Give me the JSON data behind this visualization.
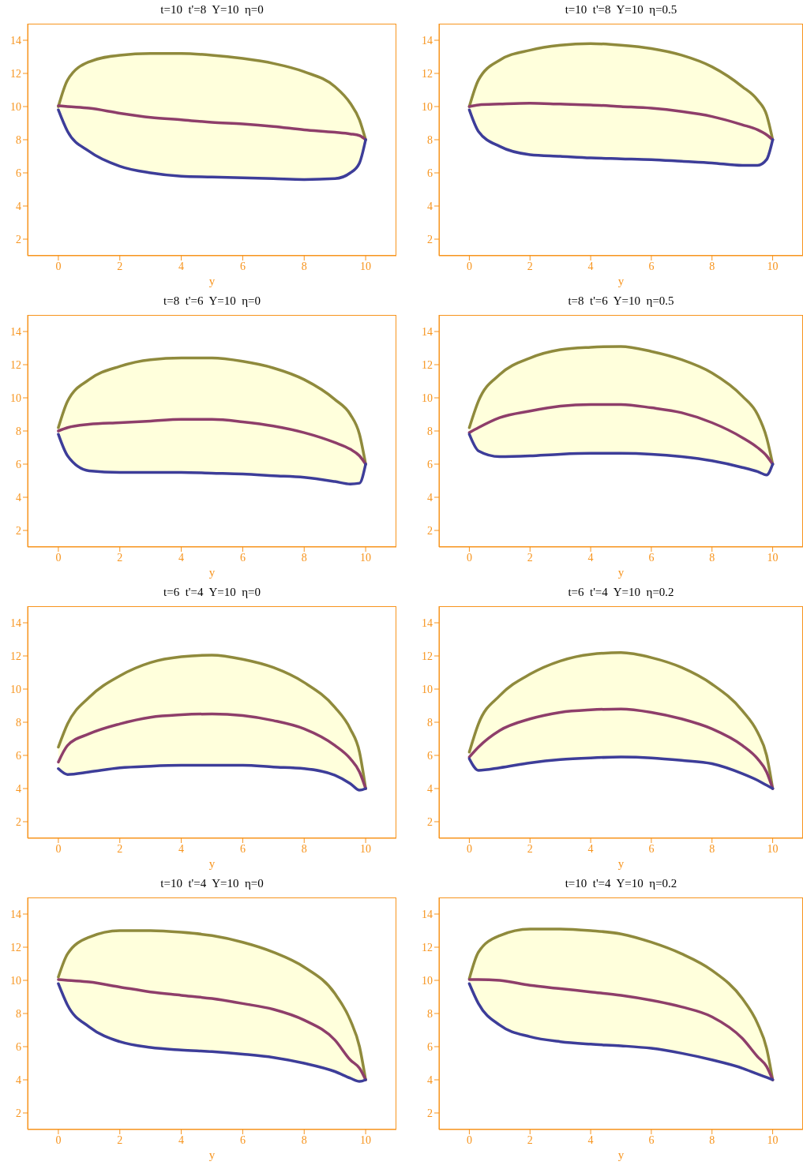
{
  "chart_data": [
    {
      "type": "line",
      "title": "t=10  t'=8  Y=10  η=0",
      "xlabel": "y",
      "x": [
        0,
        0.3,
        1,
        2,
        3,
        4,
        5,
        6,
        7,
        8,
        9,
        9.5,
        9.8,
        10
      ],
      "xlim": [
        -1,
        11
      ],
      "ylim": [
        1,
        15
      ],
      "xticks": [
        0,
        2,
        4,
        6,
        8,
        10
      ],
      "yticks": [
        2,
        4,
        6,
        8,
        10,
        12,
        14
      ],
      "series": [
        {
          "color": "#8f8a3c",
          "values": [
            10,
            11.6,
            12.7,
            13.1,
            13.2,
            13.2,
            13.1,
            12.9,
            12.6,
            12.1,
            11.2,
            10.2,
            9.2,
            8
          ]
        },
        {
          "color": "#8e3e6a",
          "values": [
            10.05,
            10,
            9.9,
            9.6,
            9.35,
            9.2,
            9.05,
            8.95,
            8.8,
            8.6,
            8.45,
            8.35,
            8.25,
            8
          ],
          "lower": [
            9.8,
            8.5,
            7.3,
            6.4,
            6,
            5.8,
            5.75,
            5.7,
            5.65,
            5.6,
            5.65,
            6,
            6.6,
            8
          ],
          "upper": [
            10,
            11.6,
            12.7,
            13.1,
            13.2,
            13.2,
            13.1,
            12.9,
            12.6,
            12.1,
            11.2,
            10.2,
            9.2,
            8
          ]
        },
        {
          "color": "#3d3d99",
          "values": [
            9.8,
            8.5,
            7.3,
            6.4,
            6,
            5.8,
            5.75,
            5.7,
            5.65,
            5.6,
            5.65,
            6,
            6.6,
            8
          ]
        }
      ]
    },
    {
      "type": "line",
      "title": "t=10  t'=8  Y=10  η=0.5",
      "xlabel": "y",
      "x": [
        0,
        0.3,
        1,
        2,
        3,
        4,
        5,
        6,
        7,
        8,
        9,
        9.5,
        9.8,
        10
      ],
      "xlim": [
        -1,
        11
      ],
      "ylim": [
        1,
        15
      ],
      "xticks": [
        0,
        2,
        4,
        6,
        8,
        10
      ],
      "yticks": [
        2,
        4,
        6,
        8,
        10,
        12,
        14
      ],
      "series": [
        {
          "color": "#8f8a3c",
          "values": [
            10,
            11.6,
            12.8,
            13.4,
            13.7,
            13.8,
            13.7,
            13.5,
            13.1,
            12.4,
            11.2,
            10.4,
            9.5,
            8
          ]
        },
        {
          "color": "#8e3e6a",
          "values": [
            10,
            10.1,
            10.15,
            10.2,
            10.15,
            10.1,
            10,
            9.9,
            9.7,
            9.4,
            8.9,
            8.6,
            8.3,
            8
          ],
          "lower": [
            9.8,
            8.5,
            7.6,
            7.1,
            7,
            6.9,
            6.85,
            6.8,
            6.7,
            6.6,
            6.45,
            6.45,
            6.8,
            8
          ],
          "upper": [
            10,
            11.6,
            12.8,
            13.4,
            13.7,
            13.8,
            13.7,
            13.5,
            13.1,
            12.4,
            11.2,
            10.4,
            9.5,
            8
          ]
        },
        {
          "color": "#3d3d99",
          "values": [
            9.8,
            8.5,
            7.6,
            7.1,
            7,
            6.9,
            6.85,
            6.8,
            6.7,
            6.6,
            6.45,
            6.45,
            6.8,
            8
          ]
        }
      ]
    },
    {
      "type": "line",
      "title": "t=8  t'=6  Y=10  η=0",
      "xlabel": "y",
      "x": [
        0,
        0.3,
        1,
        2,
        3,
        4,
        5,
        6,
        7,
        8,
        9,
        9.5,
        9.8,
        10
      ],
      "xlim": [
        -1,
        11
      ],
      "ylim": [
        1,
        15
      ],
      "xticks": [
        0,
        2,
        4,
        6,
        8,
        10
      ],
      "yticks": [
        2,
        4,
        6,
        8,
        10,
        12,
        14
      ],
      "series": [
        {
          "color": "#8f8a3c",
          "values": [
            8.2,
            9.8,
            11.1,
            11.9,
            12.3,
            12.4,
            12.4,
            12.2,
            11.8,
            11.1,
            9.9,
            9,
            7.8,
            6
          ]
        },
        {
          "color": "#8e3e6a",
          "values": [
            8,
            8.2,
            8.4,
            8.5,
            8.6,
            8.7,
            8.7,
            8.55,
            8.3,
            7.9,
            7.3,
            6.9,
            6.5,
            6
          ],
          "lower": [
            7.8,
            6.5,
            5.6,
            5.5,
            5.5,
            5.5,
            5.45,
            5.4,
            5.3,
            5.2,
            4.95,
            4.8,
            4.85,
            6
          ],
          "upper": [
            8.2,
            9.8,
            11.1,
            11.9,
            12.3,
            12.4,
            12.4,
            12.2,
            11.8,
            11.1,
            9.9,
            9,
            7.8,
            6
          ]
        },
        {
          "color": "#3d3d99",
          "values": [
            7.8,
            6.5,
            5.6,
            5.5,
            5.5,
            5.5,
            5.45,
            5.4,
            5.3,
            5.2,
            4.95,
            4.8,
            4.85,
            6
          ]
        }
      ]
    },
    {
      "type": "line",
      "title": "t=8  t'=6  Y=10  η=0.5",
      "xlabel": "y",
      "x": [
        0,
        0.3,
        1,
        2,
        3,
        4,
        5,
        6,
        7,
        8,
        9,
        9.5,
        9.8,
        10
      ],
      "xlim": [
        -1,
        11
      ],
      "ylim": [
        1,
        15
      ],
      "xticks": [
        0,
        2,
        4,
        6,
        8,
        10
      ],
      "yticks": [
        2,
        4,
        6,
        8,
        10,
        12,
        14
      ],
      "series": [
        {
          "color": "#8f8a3c",
          "values": [
            8.2,
            9.8,
            11.4,
            12.4,
            12.9,
            13.05,
            13.1,
            12.8,
            12.3,
            11.5,
            10.1,
            9,
            7.6,
            6
          ]
        },
        {
          "color": "#8e3e6a",
          "values": [
            7.9,
            8.2,
            8.8,
            9.2,
            9.5,
            9.6,
            9.6,
            9.4,
            9.1,
            8.5,
            7.6,
            7,
            6.5,
            6
          ],
          "lower": [
            7.8,
            6.8,
            6.45,
            6.5,
            6.6,
            6.65,
            6.65,
            6.6,
            6.45,
            6.2,
            5.8,
            5.55,
            5.35,
            6
          ],
          "upper": [
            8.2,
            9.8,
            11.4,
            12.4,
            12.9,
            13.05,
            13.1,
            12.8,
            12.3,
            11.5,
            10.1,
            9,
            7.6,
            6
          ]
        },
        {
          "color": "#3d3d99",
          "values": [
            7.8,
            6.8,
            6.45,
            6.5,
            6.6,
            6.65,
            6.65,
            6.6,
            6.45,
            6.2,
            5.8,
            5.55,
            5.35,
            6
          ]
        }
      ]
    },
    {
      "type": "line",
      "title": "t=6  t'=4  Y=10  η=0",
      "xlabel": "y",
      "x": [
        0,
        0.3,
        1,
        2,
        3,
        4,
        5,
        6,
        7,
        8,
        9,
        9.5,
        9.8,
        10
      ],
      "xlim": [
        -1,
        11
      ],
      "ylim": [
        1,
        15
      ],
      "xticks": [
        0,
        2,
        4,
        6,
        8,
        10
      ],
      "yticks": [
        2,
        4,
        6,
        8,
        10,
        12,
        14
      ],
      "series": [
        {
          "color": "#8f8a3c",
          "values": [
            6.5,
            7.9,
            9.5,
            10.8,
            11.6,
            11.95,
            12.05,
            11.8,
            11.3,
            10.4,
            8.9,
            7.6,
            6.2,
            4
          ]
        },
        {
          "color": "#8e3e6a",
          "values": [
            5.6,
            6.6,
            7.3,
            7.9,
            8.3,
            8.45,
            8.5,
            8.4,
            8.1,
            7.6,
            6.6,
            5.8,
            5,
            4
          ],
          "lower": [
            5.2,
            4.85,
            5,
            5.25,
            5.35,
            5.4,
            5.4,
            5.4,
            5.3,
            5.2,
            4.8,
            4.3,
            3.9,
            4
          ],
          "upper": [
            6.5,
            7.9,
            9.5,
            10.8,
            11.6,
            11.95,
            12.05,
            11.8,
            11.3,
            10.4,
            8.9,
            7.6,
            6.2,
            4
          ]
        },
        {
          "color": "#3d3d99",
          "values": [
            5.2,
            4.85,
            5,
            5.25,
            5.35,
            5.4,
            5.4,
            5.4,
            5.3,
            5.2,
            4.8,
            4.3,
            3.9,
            4
          ]
        }
      ]
    },
    {
      "type": "line",
      "title": "t=6  t'=4  Y=10  η=0.2",
      "xlabel": "y",
      "x": [
        0,
        0.3,
        1,
        2,
        3,
        4,
        5,
        6,
        7,
        8,
        9,
        9.5,
        9.8,
        10
      ],
      "xlim": [
        -1,
        11
      ],
      "ylim": [
        1,
        15
      ],
      "xticks": [
        0,
        2,
        4,
        6,
        8,
        10
      ],
      "yticks": [
        2,
        4,
        6,
        8,
        10,
        12,
        14
      ],
      "series": [
        {
          "color": "#8f8a3c",
          "values": [
            6.2,
            7.9,
            9.6,
            10.9,
            11.7,
            12.1,
            12.2,
            11.9,
            11.3,
            10.3,
            8.7,
            7.4,
            6,
            4
          ]
        },
        {
          "color": "#8e3e6a",
          "values": [
            5.9,
            6.5,
            7.5,
            8.2,
            8.6,
            8.75,
            8.8,
            8.6,
            8.2,
            7.6,
            6.6,
            5.8,
            5,
            4
          ],
          "lower": [
            5.8,
            5.1,
            5.25,
            5.55,
            5.75,
            5.85,
            5.9,
            5.85,
            5.7,
            5.5,
            4.9,
            4.5,
            4.2,
            4
          ],
          "upper": [
            6.2,
            7.9,
            9.6,
            10.9,
            11.7,
            12.1,
            12.2,
            11.9,
            11.3,
            10.3,
            8.7,
            7.4,
            6,
            4
          ]
        },
        {
          "color": "#3d3d99",
          "values": [
            5.8,
            5.1,
            5.25,
            5.55,
            5.75,
            5.85,
            5.9,
            5.85,
            5.7,
            5.5,
            4.9,
            4.5,
            4.2,
            4
          ]
        }
      ]
    },
    {
      "type": "line",
      "title": "t=10  t'=4  Y=10  η=0",
      "xlabel": "y",
      "x": [
        0,
        0.3,
        1,
        2,
        3,
        4,
        5,
        6,
        7,
        8,
        9,
        9.5,
        9.8,
        10
      ],
      "xlim": [
        -1,
        11
      ],
      "ylim": [
        1,
        15
      ],
      "xticks": [
        0,
        2,
        4,
        6,
        8,
        10
      ],
      "yticks": [
        2,
        4,
        6,
        8,
        10,
        12,
        14
      ],
      "series": [
        {
          "color": "#8f8a3c",
          "values": [
            10.2,
            11.6,
            12.6,
            13,
            13,
            12.9,
            12.7,
            12.3,
            11.7,
            10.8,
            9.2,
            7.6,
            6,
            4
          ]
        },
        {
          "color": "#8e3e6a",
          "values": [
            10.05,
            10,
            9.9,
            9.6,
            9.3,
            9.1,
            8.9,
            8.6,
            8.25,
            7.6,
            6.4,
            5.2,
            4.7,
            4
          ],
          "lower": [
            9.8,
            8.5,
            7.2,
            6.3,
            5.95,
            5.8,
            5.7,
            5.55,
            5.35,
            5,
            4.5,
            4.1,
            3.9,
            4
          ],
          "upper": [
            10.2,
            11.6,
            12.6,
            13,
            13,
            12.9,
            12.7,
            12.3,
            11.7,
            10.8,
            9.2,
            7.6,
            6,
            4
          ]
        },
        {
          "color": "#3d3d99",
          "values": [
            9.8,
            8.5,
            7.2,
            6.3,
            5.95,
            5.8,
            5.7,
            5.55,
            5.35,
            5,
            4.5,
            4.1,
            3.9,
            4
          ]
        }
      ]
    },
    {
      "type": "line",
      "title": "t=10  t'=4  Y=10  η=0.2",
      "xlabel": "y",
      "x": [
        0,
        0.3,
        1,
        2,
        3,
        4,
        5,
        6,
        7,
        8,
        9,
        9.5,
        9.8,
        10
      ],
      "xlim": [
        -1,
        11
      ],
      "ylim": [
        1,
        15
      ],
      "xticks": [
        0,
        2,
        4,
        6,
        8,
        10
      ],
      "yticks": [
        2,
        4,
        6,
        8,
        10,
        12,
        14
      ],
      "series": [
        {
          "color": "#8f8a3c",
          "values": [
            10.1,
            11.7,
            12.7,
            13.1,
            13.1,
            13,
            12.8,
            12.3,
            11.6,
            10.6,
            8.9,
            7.4,
            5.9,
            4
          ]
        },
        {
          "color": "#8e3e6a",
          "values": [
            10.05,
            10.05,
            10,
            9.7,
            9.5,
            9.3,
            9.1,
            8.8,
            8.4,
            7.8,
            6.5,
            5.4,
            4.8,
            4
          ],
          "lower": [
            9.8,
            8.6,
            7.3,
            6.6,
            6.3,
            6.15,
            6.05,
            5.9,
            5.6,
            5.2,
            4.7,
            4.35,
            4.15,
            4
          ],
          "upper": [
            10.1,
            11.7,
            12.7,
            13.1,
            13.1,
            13,
            12.8,
            12.3,
            11.6,
            10.6,
            8.9,
            7.4,
            5.9,
            4
          ]
        },
        {
          "color": "#3d3d99",
          "values": [
            9.8,
            8.6,
            7.3,
            6.6,
            6.3,
            6.15,
            6.05,
            5.9,
            5.6,
            5.2,
            4.7,
            4.35,
            4.15,
            4
          ]
        }
      ]
    }
  ]
}
